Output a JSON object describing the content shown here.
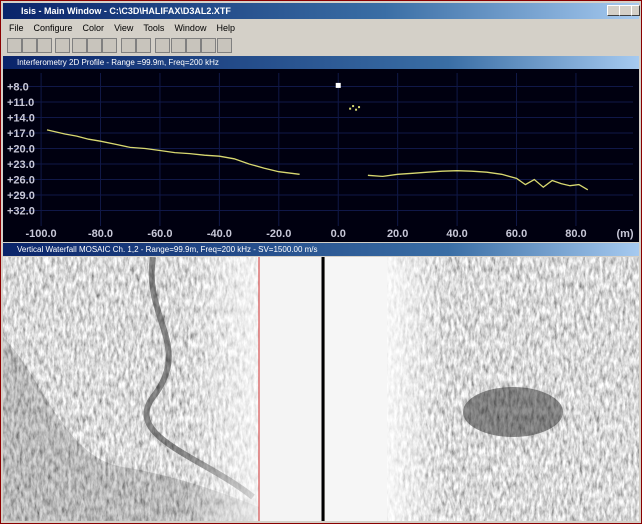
{
  "window": {
    "title": "Isis - Main Window - C:\\C3D\\HALIFAX\\D3AL2.XTF"
  },
  "menu": [
    "File",
    "Configure",
    "Color",
    "View",
    "Tools",
    "Window",
    "Help"
  ],
  "profile": {
    "title": "Interferometry 2D Profile - Range =99.9m, Freq=200 kHz",
    "xlim": [
      -110.8,
      99.2
    ],
    "ylim": [
      5.4,
      35
    ],
    "xticks": [
      {
        "value": -100,
        "label": "-100.0"
      },
      {
        "value": -80,
        "label": "-80.0"
      },
      {
        "value": -60,
        "label": "-60.0"
      },
      {
        "value": -40,
        "label": "-40.0"
      },
      {
        "value": -20,
        "label": "-20.0"
      },
      {
        "value": 0,
        "label": "0.0"
      },
      {
        "value": 20,
        "label": "20.0"
      },
      {
        "value": 40,
        "label": "40.0"
      },
      {
        "value": 60,
        "label": "60.0"
      },
      {
        "value": 80,
        "label": "80.0"
      }
    ],
    "x_unit": "(m)",
    "yticks": [
      {
        "value": 8,
        "label": "+8.0"
      },
      {
        "value": 11,
        "label": "+11.0"
      },
      {
        "value": 14,
        "label": "+14.0"
      },
      {
        "value": 17,
        "label": "+17.0"
      },
      {
        "value": 20,
        "label": "+20.0"
      },
      {
        "value": 23,
        "label": "+23.0"
      },
      {
        "value": 26,
        "label": "+26.0"
      },
      {
        "value": 29,
        "label": "+29.0"
      },
      {
        "value": 32,
        "label": "+32.0"
      }
    ],
    "grid": true,
    "line": {
      "color": "#d8d870",
      "x": [
        -98,
        -92,
        -88,
        -84,
        -80,
        -75,
        -70,
        -65,
        -60,
        -55,
        -50,
        -45,
        -40,
        -35,
        -30,
        -25,
        -20,
        -13,
        null,
        10,
        15,
        20,
        25,
        30,
        35,
        40,
        45,
        50,
        55,
        60,
        63,
        66,
        69,
        72,
        75,
        78,
        81,
        84
      ],
      "y": [
        16.4,
        17.2,
        17.6,
        18.2,
        18.6,
        19.2,
        19.8,
        20.0,
        20.4,
        20.8,
        21.0,
        21.3,
        21.5,
        22.0,
        23.0,
        23.8,
        24.5,
        25.0,
        null,
        25.2,
        25.4,
        25.0,
        24.8,
        24.6,
        24.4,
        24.3,
        24.4,
        24.6,
        25.0,
        25.8,
        27.0,
        26.0,
        27.5,
        26.2,
        26.8,
        27.2,
        27.0,
        28.0
      ]
    },
    "markers": {
      "color": "#ffffff",
      "x": [
        0,
        4,
        5,
        6,
        7
      ],
      "y": [
        7.8,
        12.3,
        11.8,
        12.5,
        12.0
      ]
    }
  },
  "waterfall": {
    "title": "Vertical Waterfall MOSAIC Ch. 1,2 - Range=99.9m, Freq=200 kHz - SV=1500.00 m/s"
  }
}
